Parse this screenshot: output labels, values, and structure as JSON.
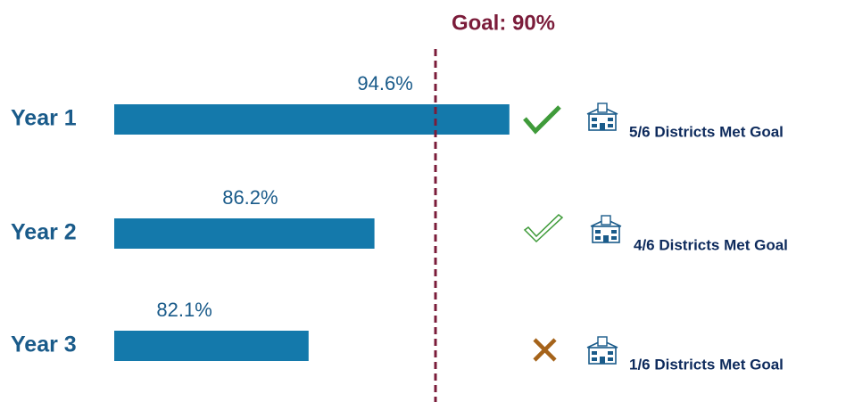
{
  "chart_data": {
    "type": "hbar",
    "categories": [
      "Year 1",
      "Year 2",
      "Year 3"
    ],
    "values": [
      94.6,
      86.2,
      82.1
    ],
    "value_labels": [
      "94.6%",
      "86.2%",
      "82.1%"
    ],
    "color": "#1479ab",
    "xlim": [
      70,
      100
    ],
    "goal": {
      "value": 90,
      "label": "Goal: 90%",
      "color": "#7b1c3a"
    },
    "annotations": [
      "5/6 Districts Met Goal",
      "4/6 Districts Met Goal",
      "1/6 Districts Met Goal"
    ]
  }
}
